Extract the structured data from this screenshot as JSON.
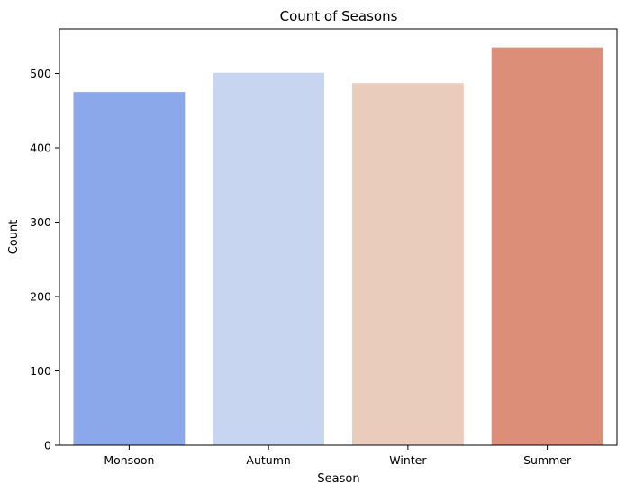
{
  "chart_data": {
    "type": "bar",
    "title": "Count of Seasons",
    "xlabel": "Season",
    "ylabel": "Count",
    "categories": [
      "Monsoon",
      "Autumn",
      "Winter",
      "Summer"
    ],
    "values": [
      475,
      501,
      487,
      535
    ],
    "colors": [
      "#8aa8ea",
      "#c7d5f1",
      "#eaccbd",
      "#dd8e78"
    ],
    "ylim": [
      0,
      560
    ],
    "yticks": [
      0,
      100,
      200,
      300,
      400,
      500
    ],
    "grid": false,
    "legend": "none"
  }
}
